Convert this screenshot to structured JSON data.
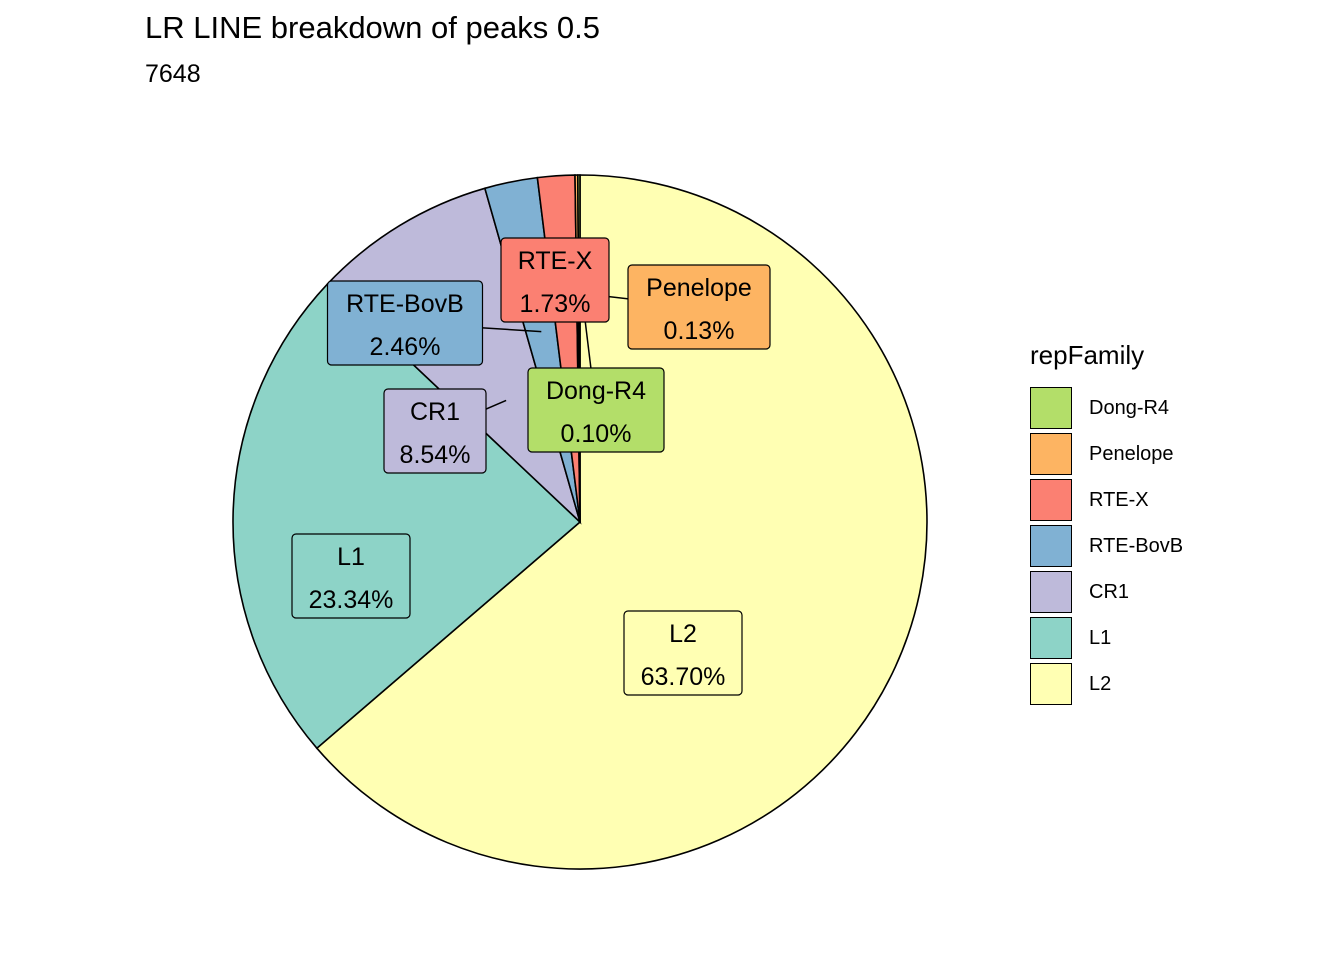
{
  "chart_data": {
    "type": "pie",
    "title": "LR LINE breakdown of peaks 0.5",
    "subtitle": "7648",
    "legend": {
      "title": "repFamily",
      "placement": "right",
      "entries": [
        "Dong-R4",
        "Penelope",
        "RTE-X",
        "RTE-BovB",
        "CR1",
        "L1",
        "L2"
      ]
    },
    "slices": [
      {
        "label": "L2",
        "value": 63.7,
        "value_label": "63.70%",
        "color": "#FFFFB3"
      },
      {
        "label": "L1",
        "value": 23.34,
        "value_label": "23.34%",
        "color": "#8DD3C7"
      },
      {
        "label": "CR1",
        "value": 8.54,
        "value_label": "8.54%",
        "color": "#BEBADA"
      },
      {
        "label": "RTE-BovB",
        "value": 2.46,
        "value_label": "2.46%",
        "color": "#80B1D3"
      },
      {
        "label": "RTE-X",
        "value": 1.73,
        "value_label": "1.73%",
        "color": "#FB8072"
      },
      {
        "label": "Penelope",
        "value": 0.13,
        "value_label": "0.13%",
        "color": "#FDB462"
      },
      {
        "label": "Dong-R4",
        "value": 0.1,
        "value_label": "0.10%",
        "color": "#B3DE69"
      }
    ]
  }
}
